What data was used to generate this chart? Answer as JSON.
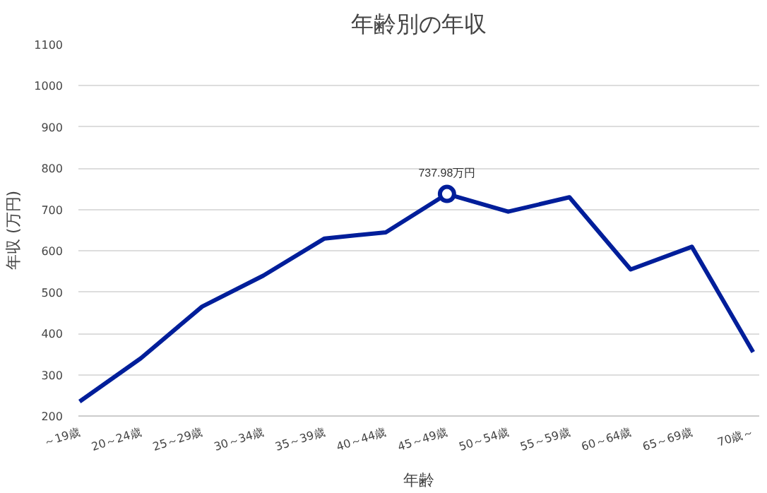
{
  "chart_data": {
    "type": "line",
    "title": "年齢別の年収",
    "xlabel": "年齢",
    "ylabel": "年収 (万円)",
    "categories": [
      "～19歳",
      "20～24歳",
      "25～29歳",
      "30～34歳",
      "35～39歳",
      "40～44歳",
      "45～49歳",
      "50～54歳",
      "55～59歳",
      "60～64歳",
      "65～69歳",
      "70歳～"
    ],
    "series": [
      {
        "color": "#001e9a",
        "values": [
          235,
          340,
          465,
          540,
          630,
          645,
          737.98,
          695,
          730,
          555,
          610,
          355
        ],
        "value_labels": [
          null,
          null,
          null,
          null,
          null,
          null,
          "737.98万円",
          null,
          null,
          null,
          null,
          null
        ]
      }
    ],
    "ylim": [
      200,
      1100
    ],
    "yticks": [
      200,
      300,
      400,
      500,
      600,
      700,
      800,
      900,
      1000,
      1100
    ],
    "grid": "y"
  }
}
